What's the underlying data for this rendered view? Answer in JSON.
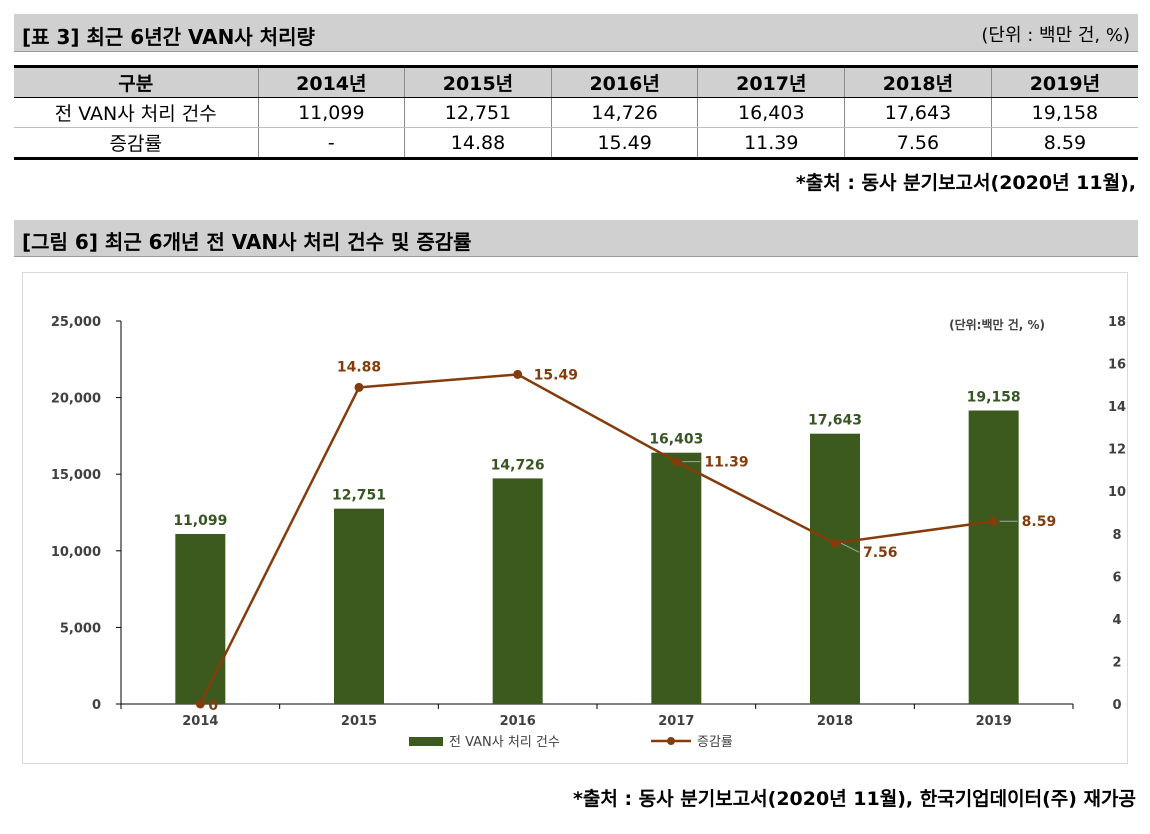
{
  "table_section": {
    "title": "[표 3] 최근 6년간 VAN사 처리량",
    "unit": "(단위 : 백만 건, %)",
    "headers": [
      "구분",
      "2014년",
      "2015년",
      "2016년",
      "2017년",
      "2018년",
      "2019년"
    ],
    "rows": [
      [
        "전 VAN사 처리 건수",
        "11,099",
        "12,751",
        "14,726",
        "16,403",
        "17,643",
        "19,158"
      ],
      [
        "증감률",
        "-",
        "14.88",
        "15.49",
        "11.39",
        "7.56",
        "8.59"
      ]
    ],
    "source": "*출처 : 동사 분기보고서(2020년 11월),"
  },
  "figure_section": {
    "title": "[그림 6] 최근 6개년 전 VAN사 처리 건수 및 증감률",
    "source": "*출처 : 동사 분기보고서(2020년 11월), 한국기업데이터(주) 재가공"
  },
  "colors": {
    "bar": "#3c5a1e",
    "line": "#843c0c",
    "bar_label": "#375623",
    "line_label": "#843c0c"
  },
  "chart_data": {
    "type": "bar",
    "categories": [
      "2014",
      "2015",
      "2016",
      "2017",
      "2018",
      "2019"
    ],
    "series": [
      {
        "name": "전 VAN사 처리 건수",
        "type": "bar",
        "axis": "left",
        "values": [
          11099,
          12751,
          14726,
          16403,
          17643,
          19158
        ],
        "labels": [
          "11,099",
          "12,751",
          "14,726",
          "16,403",
          "17,643",
          "19,158"
        ]
      },
      {
        "name": "증감률",
        "type": "line",
        "axis": "right",
        "values": [
          0,
          14.88,
          15.49,
          11.39,
          7.56,
          8.59
        ],
        "labels": [
          "0",
          "14.88",
          "15.49",
          "11.39",
          "7.56",
          "8.59"
        ]
      }
    ],
    "y_left": {
      "min": 0,
      "max": 25000,
      "step": 5000,
      "ticks": [
        "0",
        "5,000",
        "10,000",
        "15,000",
        "20,000",
        "25,000"
      ]
    },
    "y_right": {
      "min": 0,
      "max": 18,
      "step": 2,
      "ticks": [
        "0",
        "2",
        "4",
        "6",
        "8",
        "10",
        "12",
        "14",
        "16",
        "18"
      ]
    },
    "annotation": "(단위:백만 건, %)",
    "legend": [
      "전 VAN사 처리 건수",
      "증감률"
    ],
    "legend_position": "bottom"
  }
}
